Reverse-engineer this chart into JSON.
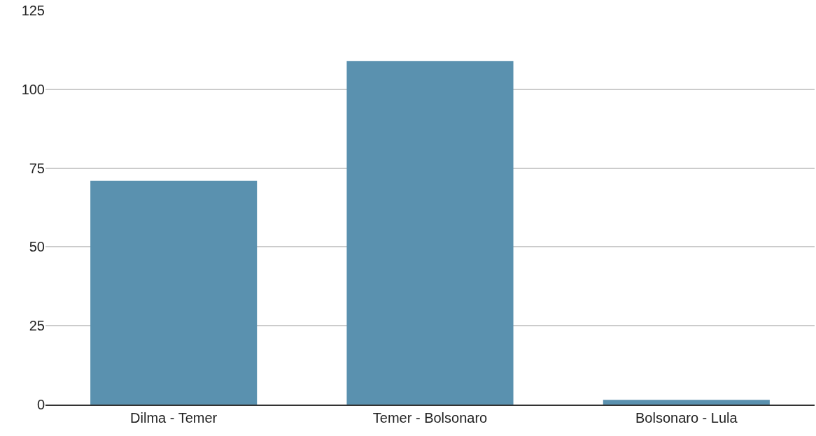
{
  "chart_data": {
    "type": "bar",
    "categories": [
      "Dilma - Temer",
      "Temer - Bolsonaro",
      "Bolsonaro - Lula"
    ],
    "values": [
      71,
      109,
      1.5
    ],
    "color": "#5a91af",
    "ylim": [
      0,
      125
    ],
    "yticks": [
      0,
      25,
      50,
      75,
      100,
      125
    ],
    "grid": "y",
    "legend": false
  }
}
